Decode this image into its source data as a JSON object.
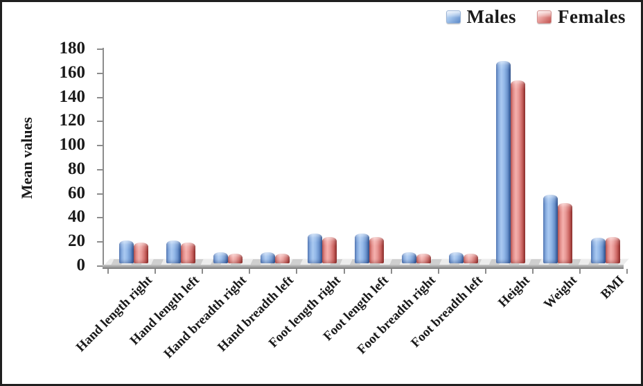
{
  "figure": {
    "background": "#ffffff",
    "border_color": "#1f1f1f"
  },
  "legend": {
    "position": "top-right",
    "items": [
      {
        "label": "Males",
        "color": "#6e9ad3"
      },
      {
        "label": "Females",
        "color": "#d9706d"
      }
    ]
  },
  "chart_data": {
    "type": "bar",
    "title": "",
    "xlabel": "",
    "ylabel": "Mean values",
    "ylim": [
      0,
      180
    ],
    "yticks": [
      0,
      20,
      40,
      60,
      80,
      100,
      120,
      140,
      160,
      180
    ],
    "grid": false,
    "legend_position": "top-right",
    "bar_style": "3d-rounded",
    "axis_color": "#8c8c8c",
    "categories": [
      "Hand length right",
      "Hand length left",
      "Hand breadth right",
      "Hand breadth left",
      "Foot length right",
      "Foot length left",
      "Foot breadth right",
      "Foot breadth left",
      "Height",
      "Weight",
      "BMI"
    ],
    "series": [
      {
        "name": "Males",
        "color": "#6e9ad3",
        "values": [
          19,
          19,
          9,
          9,
          25,
          25,
          9,
          9,
          168,
          57,
          21
        ]
      },
      {
        "name": "Females",
        "color": "#d9706d",
        "values": [
          17,
          17,
          8,
          8,
          22,
          22,
          8,
          8,
          152,
          50,
          22
        ]
      }
    ]
  }
}
